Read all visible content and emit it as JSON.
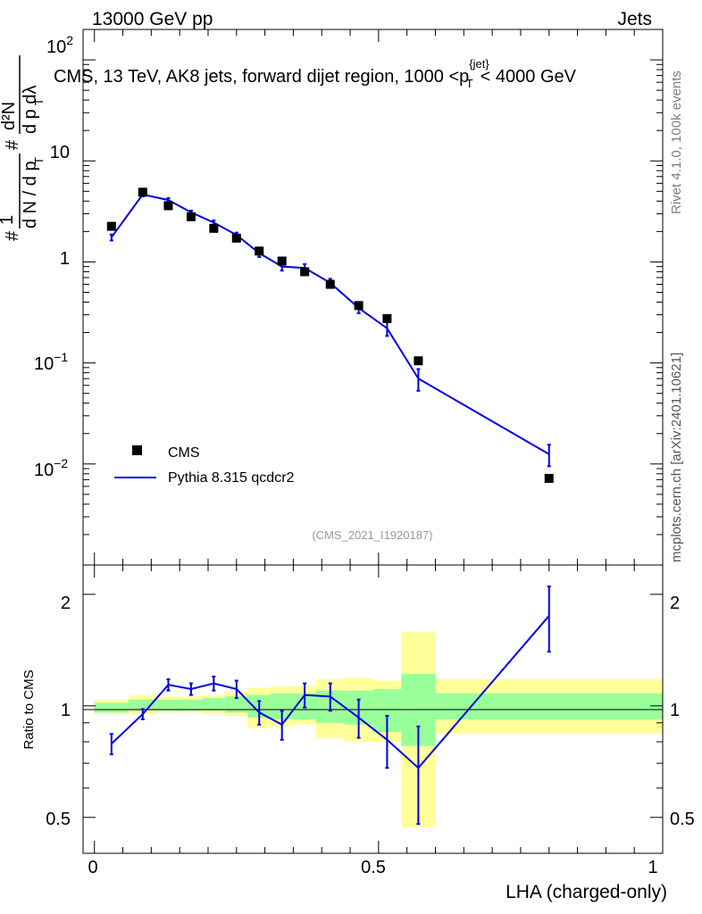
{
  "header": {
    "left": "13000 GeV pp",
    "right": "Jets"
  },
  "side_labels": {
    "rivet": "Rivet 4.1.0,  100k events",
    "mcplots": "mcplots.cern.ch [arXiv:2401.10621]"
  },
  "chart_data": [
    {
      "type": "scatter",
      "title": "CMS, 13 TeV, AK8 jets, forward dijet region, 1000 <p_T^{jet}< 4000 GeV",
      "title_main": "CMS, 13 TeV, AK8 jets, forward dijet region, 1000 <p",
      "title_sub": "T",
      "title_sup": "{jet}",
      "title_end": "< 4000 GeV",
      "ylabel": "1/(dN/dp_T) d²N/(dp_T dλ)",
      "ylabel_parts": {
        "hash": "#",
        "one": "1",
        "dN": "d N / d p",
        "T": "T",
        "d2N": "d²N",
        "dpdl": "d p  dλ"
      },
      "yscale": "log",
      "ylim": [
        0.001,
        200
      ],
      "yticks": [
        "10^{-2}",
        "10^{-1}",
        "1",
        "10",
        "10^{2}"
      ],
      "ytick_labels": {
        "em2_base": "10",
        "em2_exp": "−2",
        "em1_base": "10",
        "em1_exp": "−1",
        "e0": "1",
        "e1": "10",
        "e2_base": "10",
        "e2_exp": "2"
      },
      "xlim": [
        -0.02,
        1.0
      ],
      "legend_position": "lower-left",
      "watermark": "(CMS_2021_I1920187)",
      "series": [
        {
          "name": "CMS",
          "style": "black-square",
          "x": [
            0.03,
            0.085,
            0.13,
            0.17,
            0.21,
            0.25,
            0.29,
            0.33,
            0.37,
            0.415,
            0.465,
            0.515,
            0.57,
            0.8
          ],
          "y": [
            2.25,
            4.9,
            3.6,
            2.8,
            2.15,
            1.72,
            1.28,
            1.02,
            0.8,
            0.6,
            0.37,
            0.275,
            0.105,
            0.0072
          ]
        },
        {
          "name": "Pythia 8.315 qcdcr2",
          "style": "blue-line",
          "color": "#0000e6",
          "x": [
            0.03,
            0.085,
            0.13,
            0.17,
            0.21,
            0.25,
            0.29,
            0.33,
            0.37,
            0.415,
            0.465,
            0.515,
            0.57,
            0.8
          ],
          "y": [
            1.75,
            4.65,
            4.1,
            3.1,
            2.45,
            1.85,
            1.22,
            0.9,
            0.87,
            0.62,
            0.35,
            0.22,
            0.07,
            0.0125
          ],
          "err": [
            0.12,
            0.2,
            0.18,
            0.12,
            0.12,
            0.1,
            0.1,
            0.08,
            0.08,
            0.06,
            0.04,
            0.035,
            0.017,
            0.003
          ]
        }
      ]
    },
    {
      "type": "line",
      "ylabel": "Ratio to CMS",
      "xlabel": "LHA (charged-only)",
      "yscale": "log",
      "ylim": [
        0.4,
        2.4
      ],
      "xlim": [
        -0.02,
        1.0
      ],
      "yticks": [
        "0.5",
        "1",
        "2"
      ],
      "xticks": [
        "0",
        "0.5",
        "1"
      ],
      "reference_line": 1,
      "bands": {
        "edges": [
          0.0,
          0.06,
          0.11,
          0.15,
          0.19,
          0.23,
          0.27,
          0.31,
          0.35,
          0.39,
          0.44,
          0.49,
          0.54,
          0.6,
          1.0
        ],
        "inner_low": [
          0.96,
          0.97,
          0.97,
          0.97,
          0.97,
          0.96,
          0.93,
          0.92,
          0.92,
          0.9,
          0.89,
          0.85,
          0.78,
          0.92
        ],
        "inner_high": [
          1.02,
          1.04,
          1.04,
          1.04,
          1.05,
          1.06,
          1.07,
          1.08,
          1.08,
          1.1,
          1.1,
          1.11,
          1.22,
          1.08
        ],
        "outer_low": [
          0.95,
          0.95,
          0.96,
          0.96,
          0.95,
          0.94,
          0.87,
          0.88,
          0.89,
          0.82,
          0.8,
          0.8,
          0.47,
          0.84
        ],
        "outer_high": [
          1.04,
          1.07,
          1.06,
          1.06,
          1.07,
          1.09,
          1.12,
          1.13,
          1.13,
          1.18,
          1.19,
          1.17,
          1.58,
          1.18
        ],
        "inner_color": "#99ff99",
        "outer_color": "#ffff99"
      },
      "series": [
        {
          "name": "Pythia 8.315 qcdcr2 / CMS",
          "color": "#0000e6",
          "x": [
            0.03,
            0.085,
            0.13,
            0.17,
            0.21,
            0.25,
            0.29,
            0.33,
            0.37,
            0.415,
            0.465,
            0.515,
            0.57,
            0.8
          ],
          "y": [
            0.79,
            0.95,
            1.14,
            1.11,
            1.15,
            1.11,
            0.96,
            0.89,
            1.07,
            1.06,
            0.93,
            0.81,
            0.68,
            1.75
          ],
          "err": [
            0.05,
            0.03,
            0.04,
            0.04,
            0.05,
            0.06,
            0.07,
            0.08,
            0.08,
            0.09,
            0.11,
            0.13,
            0.2,
            0.35
          ]
        }
      ]
    }
  ]
}
